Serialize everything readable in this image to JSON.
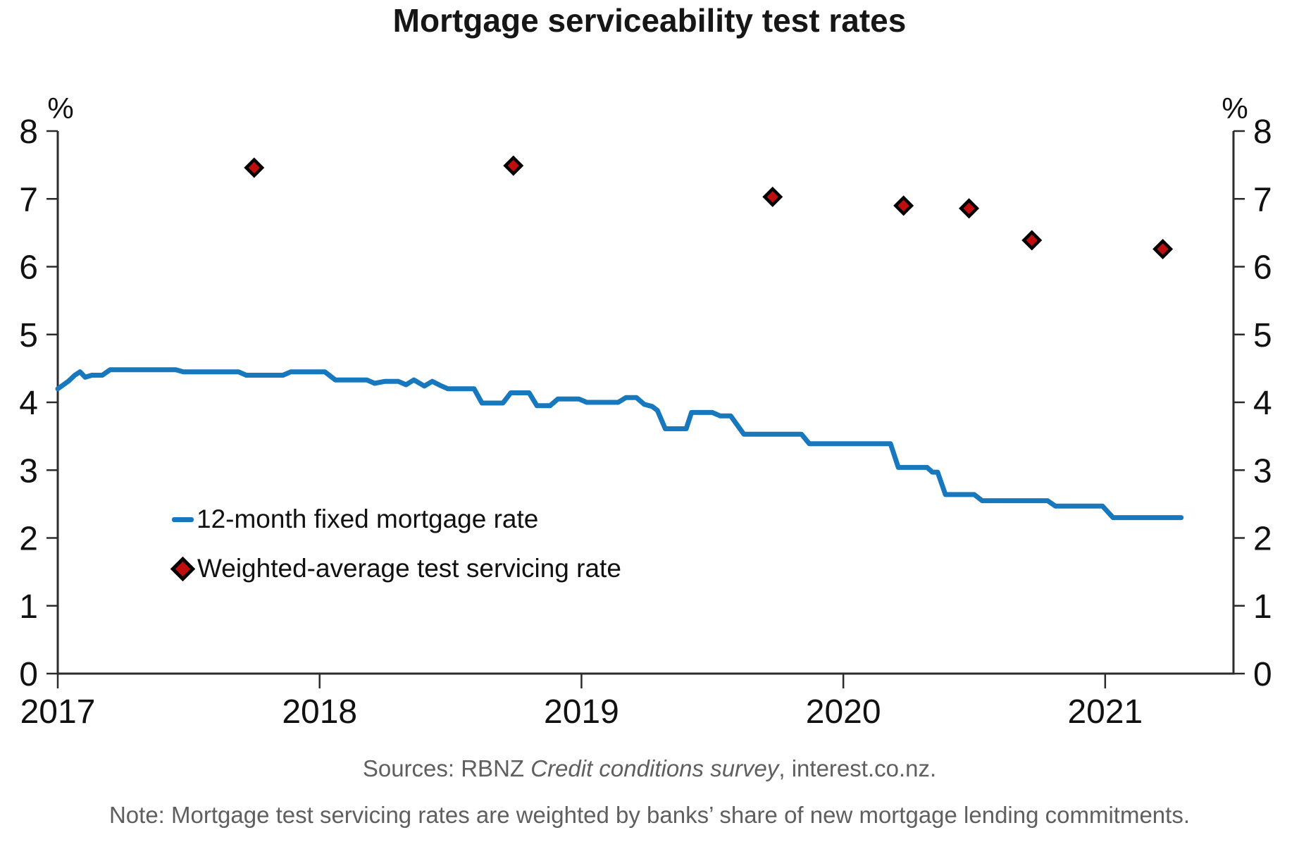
{
  "title": "Mortgage serviceability test rates",
  "legend": [
    {
      "label": "12-month fixed mortgage rate",
      "marker": "line",
      "color": "#1878bd"
    },
    {
      "label": "Weighted-average test servicing rate",
      "marker": "diamond",
      "color": "#c00d0d"
    }
  ],
  "footer": {
    "sources_prefix": "Sources: RBNZ ",
    "sources_italic": "Credit conditions survey",
    "sources_suffix": ", interest.co.nz.",
    "note": "Note: Mortgage test servicing rates are weighted by banks’ share of new mortgage lending commitments."
  },
  "chart_data": {
    "type": "line+scatter",
    "title": "Mortgage serviceability test rates",
    "xlabel": "",
    "ylabel": "%",
    "y_axis": {
      "min": 0,
      "max": 8,
      "ticks": [
        0,
        1,
        2,
        3,
        4,
        5,
        6,
        7,
        8
      ],
      "unit_label": "%",
      "sides": [
        "left",
        "right"
      ],
      "grid": false
    },
    "x_axis": {
      "min": 2017.0,
      "max": 2021.49,
      "ticks": [
        2017,
        2018,
        2019,
        2020,
        2021
      ]
    },
    "axis_color": "#2b2b2b",
    "series": [
      {
        "name": "12-month fixed mortgage rate",
        "type": "line",
        "color": "#1878bd",
        "points": [
          [
            2017.0,
            4.2
          ],
          [
            2017.04,
            4.31
          ],
          [
            2017.065,
            4.4
          ],
          [
            2017.085,
            4.45
          ],
          [
            2017.105,
            4.37
          ],
          [
            2017.13,
            4.4
          ],
          [
            2017.17,
            4.4
          ],
          [
            2017.2,
            4.48
          ],
          [
            2017.45,
            4.48
          ],
          [
            2017.48,
            4.45
          ],
          [
            2017.69,
            4.45
          ],
          [
            2017.72,
            4.4
          ],
          [
            2017.86,
            4.4
          ],
          [
            2017.89,
            4.45
          ],
          [
            2018.02,
            4.45
          ],
          [
            2018.06,
            4.33
          ],
          [
            2018.18,
            4.33
          ],
          [
            2018.21,
            4.28
          ],
          [
            2018.25,
            4.31
          ],
          [
            2018.3,
            4.31
          ],
          [
            2018.33,
            4.26
          ],
          [
            2018.36,
            4.33
          ],
          [
            2018.4,
            4.24
          ],
          [
            2018.43,
            4.31
          ],
          [
            2018.46,
            4.25
          ],
          [
            2018.49,
            4.2
          ],
          [
            2018.59,
            4.2
          ],
          [
            2018.62,
            3.99
          ],
          [
            2018.7,
            3.99
          ],
          [
            2018.73,
            4.14
          ],
          [
            2018.8,
            4.14
          ],
          [
            2018.83,
            3.95
          ],
          [
            2018.88,
            3.95
          ],
          [
            2018.91,
            4.05
          ],
          [
            2018.99,
            4.05
          ],
          [
            2019.02,
            4.0
          ],
          [
            2019.14,
            4.0
          ],
          [
            2019.17,
            4.07
          ],
          [
            2019.21,
            4.07
          ],
          [
            2019.24,
            3.97
          ],
          [
            2019.27,
            3.94
          ],
          [
            2019.29,
            3.88
          ],
          [
            2019.32,
            3.61
          ],
          [
            2019.4,
            3.61
          ],
          [
            2019.42,
            3.85
          ],
          [
            2019.5,
            3.85
          ],
          [
            2019.53,
            3.8
          ],
          [
            2019.57,
            3.8
          ],
          [
            2019.62,
            3.53
          ],
          [
            2019.84,
            3.53
          ],
          [
            2019.87,
            3.39
          ],
          [
            2020.18,
            3.39
          ],
          [
            2020.21,
            3.04
          ],
          [
            2020.32,
            3.04
          ],
          [
            2020.34,
            2.97
          ],
          [
            2020.36,
            2.97
          ],
          [
            2020.39,
            2.64
          ],
          [
            2020.5,
            2.64
          ],
          [
            2020.53,
            2.55
          ],
          [
            2020.78,
            2.55
          ],
          [
            2020.81,
            2.47
          ],
          [
            2020.99,
            2.47
          ],
          [
            2021.03,
            2.3
          ],
          [
            2021.29,
            2.3
          ]
        ]
      },
      {
        "name": "Weighted-average test servicing rate",
        "type": "scatter",
        "marker": "diamond",
        "fill": "#c00d0d",
        "stroke": "#000000",
        "points": [
          [
            2017.75,
            7.46
          ],
          [
            2018.74,
            7.49
          ],
          [
            2019.73,
            7.03
          ],
          [
            2020.23,
            6.9
          ],
          [
            2020.48,
            6.86
          ],
          [
            2020.72,
            6.39
          ],
          [
            2021.22,
            6.26
          ]
        ]
      }
    ],
    "legend_position": "inside-left-middle"
  }
}
